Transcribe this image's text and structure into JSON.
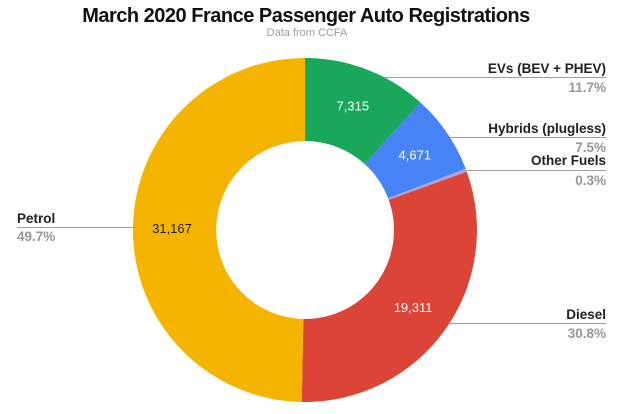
{
  "chart_data": {
    "type": "pie",
    "style": "donut",
    "title": "March 2020 France Passenger Auto Registrations",
    "subtitle": "Data from CCFA",
    "direction": "clockwise",
    "start_angle_deg": 0,
    "labels_position": "outside-callouts",
    "background": "#ffffff",
    "slices": [
      {
        "label": "EVs (BEV + PHEV)",
        "value": 7315,
        "value_label": "7,315",
        "pct": 11.7,
        "pct_label": "11.7%",
        "color": "#19A75C",
        "value_text_color": "#ffffff"
      },
      {
        "label": "Hybrids (plugless)",
        "value": 4671,
        "value_label": "4,671",
        "pct": 7.5,
        "pct_label": "7.5%",
        "color": "#4683F4",
        "value_text_color": "#ffffff"
      },
      {
        "label": "Other Fuels",
        "pct": 0.3,
        "pct_label": "0.3%",
        "color": "#AEA3D8"
      },
      {
        "label": "Diesel",
        "value": 19311,
        "value_label": "19,311",
        "pct": 30.8,
        "pct_label": "30.8%",
        "color": "#DB4437",
        "value_text_color": "#ffffff"
      },
      {
        "label": "Petrol",
        "value": 31167,
        "value_label": "31,167",
        "pct": 49.7,
        "pct_label": "49.7%",
        "color": "#F5B400",
        "value_text_color": "#212121"
      }
    ],
    "colors": {
      "label_text": "#212121",
      "pct_text": "#969696",
      "leader_line": "#9e9e9e",
      "title_text": "#111111",
      "subtitle_text": "#9e9e9e"
    }
  }
}
